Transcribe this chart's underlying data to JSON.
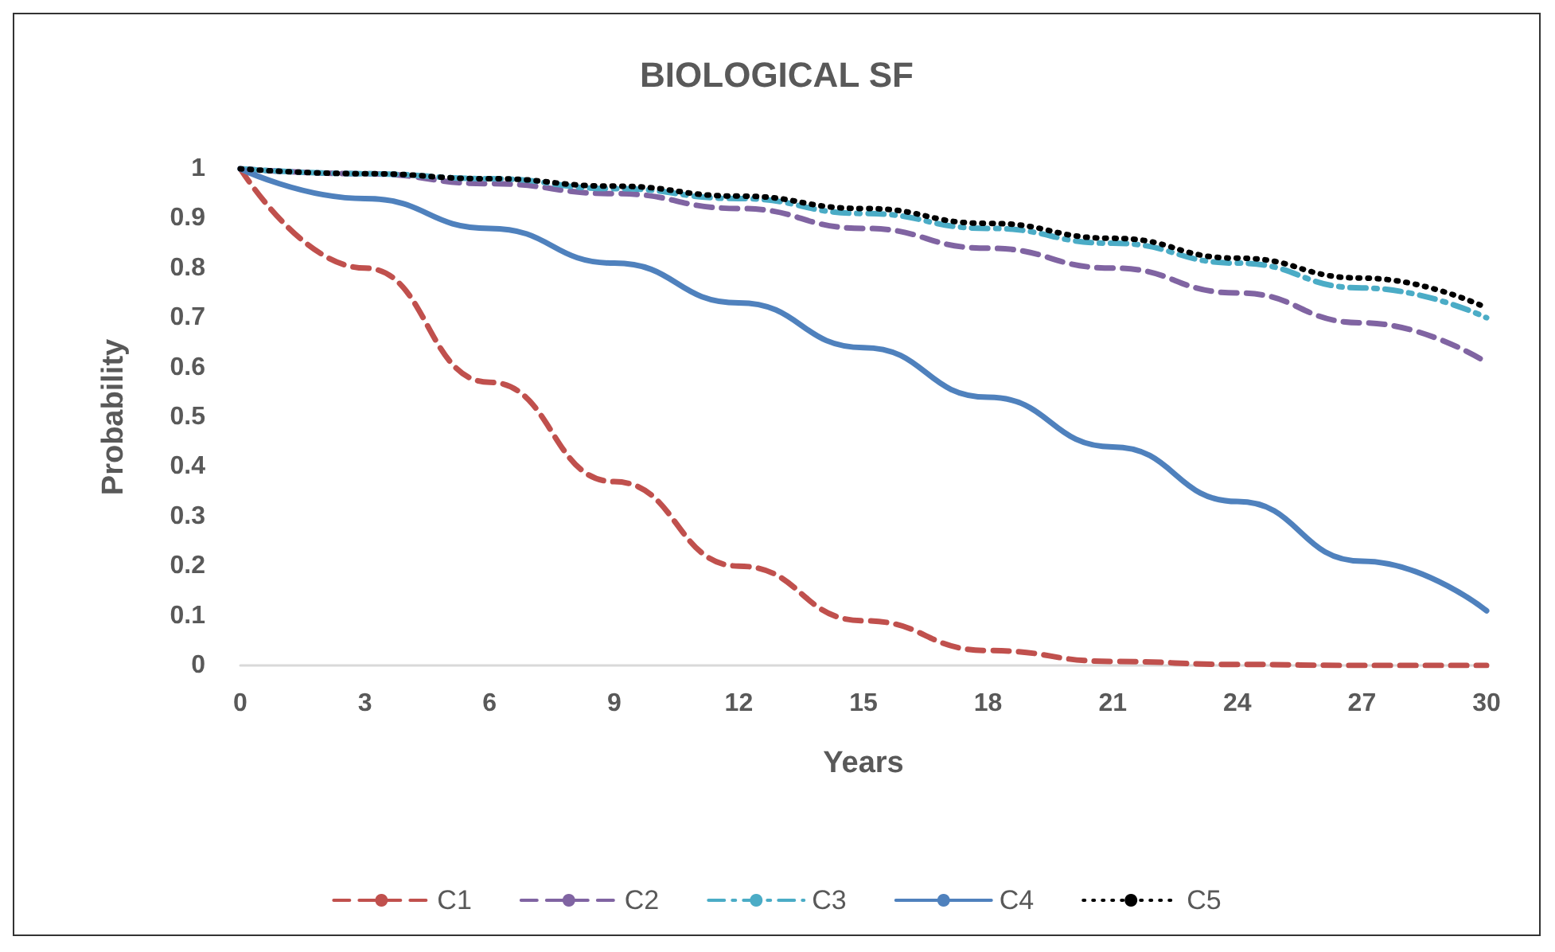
{
  "chart_data": {
    "type": "line",
    "title": "BIOLOGICAL SF",
    "xlabel": "Years",
    "ylabel": "Probability",
    "x": [
      0,
      3,
      6,
      9,
      12,
      15,
      18,
      21,
      24,
      27,
      30
    ],
    "series": [
      {
        "name": "C1",
        "color": "#c0504d",
        "line_style": "dashed",
        "values": [
          1,
          0.8,
          0.57,
          0.37,
          0.2,
          0.09,
          0.03,
          0.008,
          0.002,
          0,
          0
        ]
      },
      {
        "name": "C2",
        "color": "#8064a2",
        "line_style": "dashed",
        "values": [
          1,
          0.99,
          0.97,
          0.95,
          0.92,
          0.88,
          0.84,
          0.8,
          0.75,
          0.69,
          0.61
        ]
      },
      {
        "name": "C3",
        "color": "#4bacc6",
        "line_style": "dashdot",
        "values": [
          1,
          0.99,
          0.98,
          0.96,
          0.94,
          0.91,
          0.88,
          0.85,
          0.81,
          0.76,
          0.7
        ]
      },
      {
        "name": "C4",
        "color": "#4f81bd",
        "line_style": "solid",
        "values": [
          1,
          0.94,
          0.88,
          0.81,
          0.73,
          0.64,
          0.54,
          0.44,
          0.33,
          0.21,
          0.11
        ]
      },
      {
        "name": "C5",
        "color": "#000000",
        "line_style": "dotted",
        "values": [
          1,
          0.99,
          0.98,
          0.965,
          0.945,
          0.92,
          0.89,
          0.86,
          0.82,
          0.78,
          0.72
        ]
      }
    ],
    "xlim": [
      0,
      30
    ],
    "xticks": [
      0,
      3,
      6,
      9,
      12,
      15,
      18,
      21,
      24,
      27,
      30
    ],
    "ylim": [
      0,
      1
    ],
    "yticks": [
      0,
      0.1,
      0.2,
      0.3,
      0.4,
      0.5,
      0.6,
      0.7,
      0.8,
      0.9,
      1
    ],
    "grid": false,
    "legend": "bottom",
    "marker": "none"
  }
}
